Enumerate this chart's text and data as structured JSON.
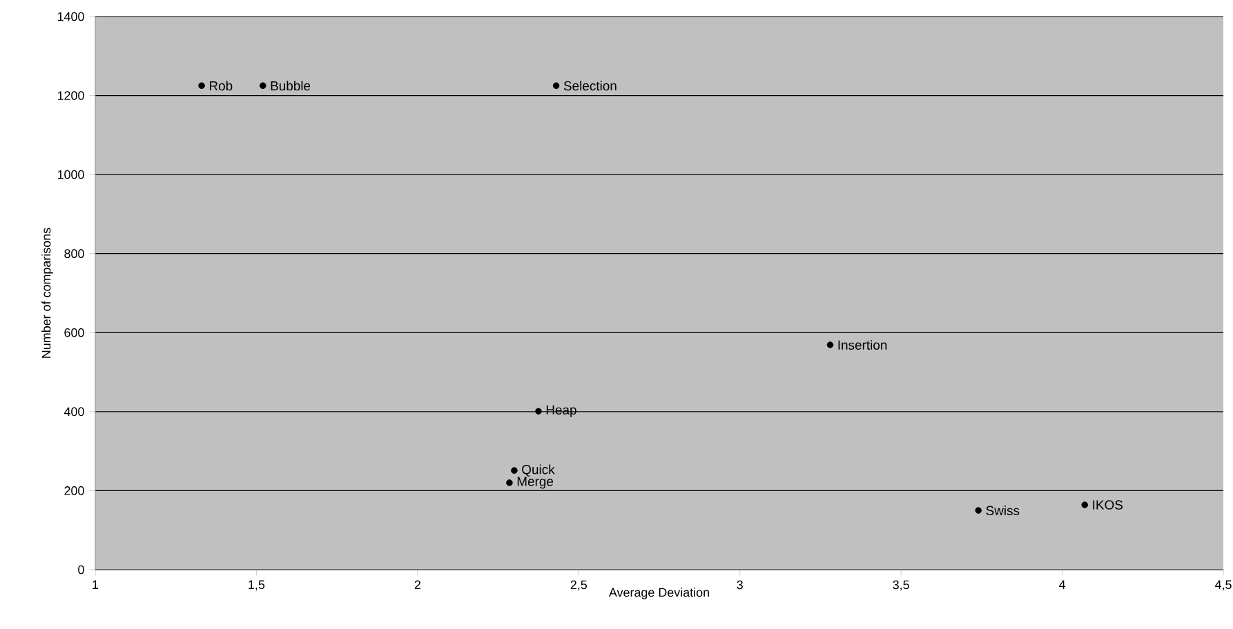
{
  "chart_data": {
    "type": "scatter",
    "xlabel": "Average Deviation",
    "ylabel": "Number of comparisons",
    "series": [
      {
        "color": "#000000",
        "x": [
          1.33,
          1.52,
          2.43,
          3.28,
          2.375,
          2.3,
          2.285,
          3.74,
          4.07
        ],
        "values": [
          1225,
          1225,
          1225,
          569,
          401,
          251,
          220,
          150,
          164
        ]
      }
    ],
    "annotations": [
      {
        "text": "Rob",
        "x": 1.33,
        "y": 1225
      },
      {
        "text": "Bubble",
        "x": 1.52,
        "y": 1225
      },
      {
        "text": "Selection",
        "x": 2.43,
        "y": 1225
      },
      {
        "text": "Insertion",
        "x": 3.28,
        "y": 569
      },
      {
        "text": "Heap",
        "x": 2.375,
        "y": 401
      },
      {
        "text": "Quick",
        "x": 2.3,
        "y": 251
      },
      {
        "text": "Merge",
        "x": 2.285,
        "y": 220
      },
      {
        "text": "Swiss",
        "x": 3.74,
        "y": 150
      },
      {
        "text": "IKOS",
        "x": 4.07,
        "y": 164
      }
    ],
    "xlim": [
      1,
      4.5
    ],
    "xticks": [
      1,
      {
        "value": 1.5,
        "label": "1,5"
      },
      2,
      {
        "value": 2.5,
        "label": "2,5"
      },
      3,
      {
        "value": 3.5,
        "label": "3,5"
      },
      4,
      {
        "value": 4.5,
        "label": "4,5"
      }
    ],
    "ylim": [
      0,
      1400
    ],
    "yticks": [
      0,
      200,
      400,
      600,
      800,
      1000,
      1200,
      1400
    ],
    "grid": "y",
    "marker": "circle"
  }
}
